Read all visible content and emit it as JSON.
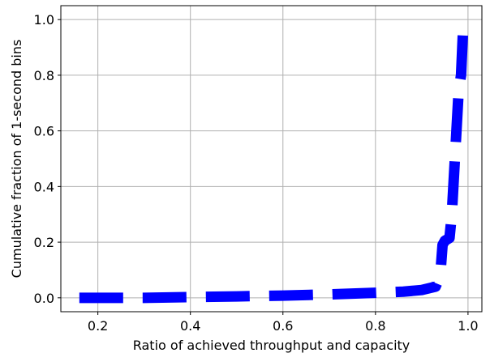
{
  "chart_data": {
    "type": "line",
    "title": "",
    "xlabel": "Ratio of achieved throughput and capacity",
    "ylabel": "Cumulative fraction of 1-second bins",
    "xlim": [
      0.12,
      1.03
    ],
    "ylim": [
      -0.05,
      1.05
    ],
    "xticks": [
      0.2,
      0.4,
      0.6,
      0.8,
      1.0
    ],
    "xtick_labels": [
      "0.2",
      "0.4",
      "0.6",
      "0.8",
      "1.0"
    ],
    "yticks": [
      0.0,
      0.2,
      0.4,
      0.6,
      0.8,
      1.0
    ],
    "ytick_labels": [
      "0.0",
      "0.2",
      "0.4",
      "0.6",
      "0.8",
      "1.0"
    ],
    "grid": true,
    "series": [
      {
        "color": "#0000ff",
        "line_style": "dashed",
        "x": [
          0.16,
          0.3,
          0.5,
          0.6,
          0.7,
          0.8,
          0.86,
          0.9,
          0.93,
          0.94,
          0.945,
          0.95,
          0.96,
          0.965,
          0.97,
          0.975,
          0.98,
          0.985,
          0.99
        ],
        "y": [
          0.0,
          0.0,
          0.005,
          0.008,
          0.012,
          0.018,
          0.022,
          0.028,
          0.04,
          0.08,
          0.19,
          0.205,
          0.215,
          0.3,
          0.45,
          0.6,
          0.75,
          0.8,
          0.99
        ]
      }
    ]
  }
}
